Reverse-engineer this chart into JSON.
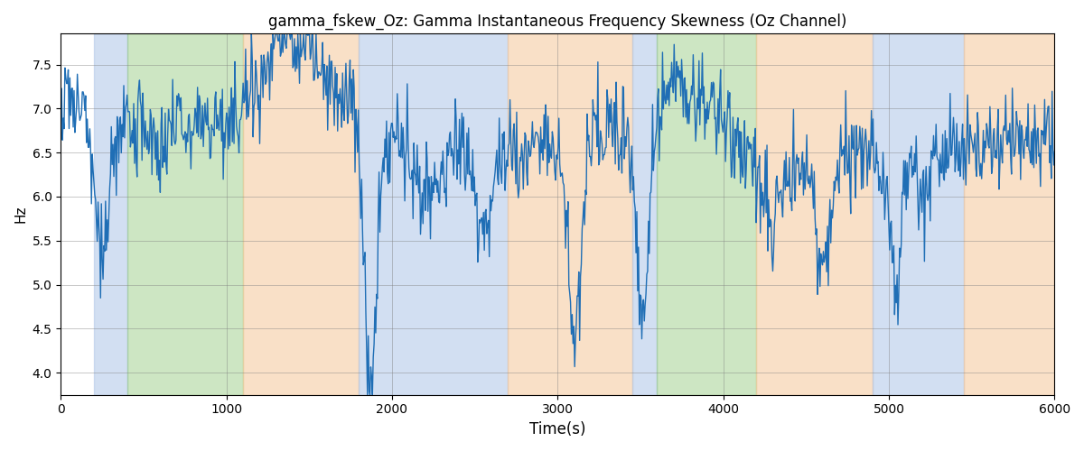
{
  "title": "gamma_fskew_Oz: Gamma Instantaneous Frequency Skewness (Oz Channel)",
  "xlabel": "Time(s)",
  "ylabel": "Hz",
  "xlim": [
    0,
    6000
  ],
  "ylim": [
    3.75,
    7.85
  ],
  "line_color": "#1f6eb5",
  "line_width": 1.0,
  "bg_bands": [
    {
      "xmin": 200,
      "xmax": 400,
      "color": "#aec6e8",
      "alpha": 0.55
    },
    {
      "xmin": 400,
      "xmax": 1100,
      "color": "#90c87a",
      "alpha": 0.45
    },
    {
      "xmin": 1100,
      "xmax": 1800,
      "color": "#f5c89a",
      "alpha": 0.55
    },
    {
      "xmin": 1800,
      "xmax": 2700,
      "color": "#aec6e8",
      "alpha": 0.55
    },
    {
      "xmin": 2700,
      "xmax": 3450,
      "color": "#f5c89a",
      "alpha": 0.55
    },
    {
      "xmin": 3450,
      "xmax": 3600,
      "color": "#aec6e8",
      "alpha": 0.55
    },
    {
      "xmin": 3600,
      "xmax": 4200,
      "color": "#90c87a",
      "alpha": 0.45
    },
    {
      "xmin": 4200,
      "xmax": 4900,
      "color": "#f5c89a",
      "alpha": 0.55
    },
    {
      "xmin": 4900,
      "xmax": 5450,
      "color": "#aec6e8",
      "alpha": 0.55
    },
    {
      "xmin": 5450,
      "xmax": 6000,
      "color": "#f5c89a",
      "alpha": 0.55
    }
  ],
  "n_points": 1200,
  "seed": 7
}
